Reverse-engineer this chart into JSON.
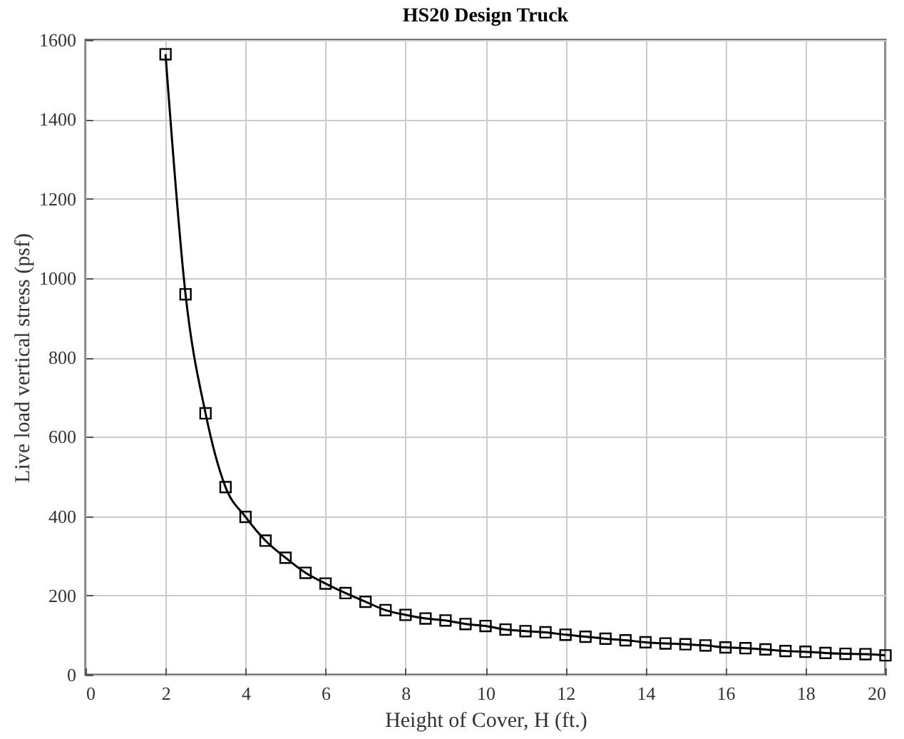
{
  "chart_data": {
    "type": "line",
    "title": "HS20 Design Truck",
    "xlabel": "Height of Cover, H (ft.)",
    "ylabel": "Live load vertical stress (psf)",
    "x": [
      2,
      2.5,
      3,
      3.5,
      4,
      4.5,
      5,
      5.5,
      6,
      6.5,
      7,
      7.5,
      8,
      8.5,
      9,
      9.5,
      10,
      10.5,
      11,
      11.5,
      12,
      12.5,
      13,
      13.5,
      14,
      14.5,
      15,
      15.5,
      16,
      16.5,
      17,
      17.5,
      18,
      18.5,
      19,
      19.5,
      20
    ],
    "series": [
      {
        "color": "#000000",
        "values": [
          1564,
          959,
          659,
          473,
          398,
          338,
          295,
          257,
          230,
          206,
          184,
          163,
          151,
          142,
          137,
          128,
          123,
          114,
          110,
          107,
          101,
          96,
          91,
          87,
          82,
          79,
          77,
          74,
          69,
          67,
          64,
          60,
          58,
          55,
          53,
          52,
          49
        ]
      }
    ],
    "xlim": [
      0,
      20
    ],
    "xticks": [
      0,
      2,
      4,
      6,
      8,
      10,
      12,
      14,
      16,
      18,
      20
    ],
    "ylim": [
      0,
      1600
    ],
    "yticks": [
      0,
      200,
      400,
      600,
      800,
      1000,
      1200,
      1400,
      1600
    ],
    "grid": true,
    "marker": "square",
    "line_style": "solid"
  }
}
